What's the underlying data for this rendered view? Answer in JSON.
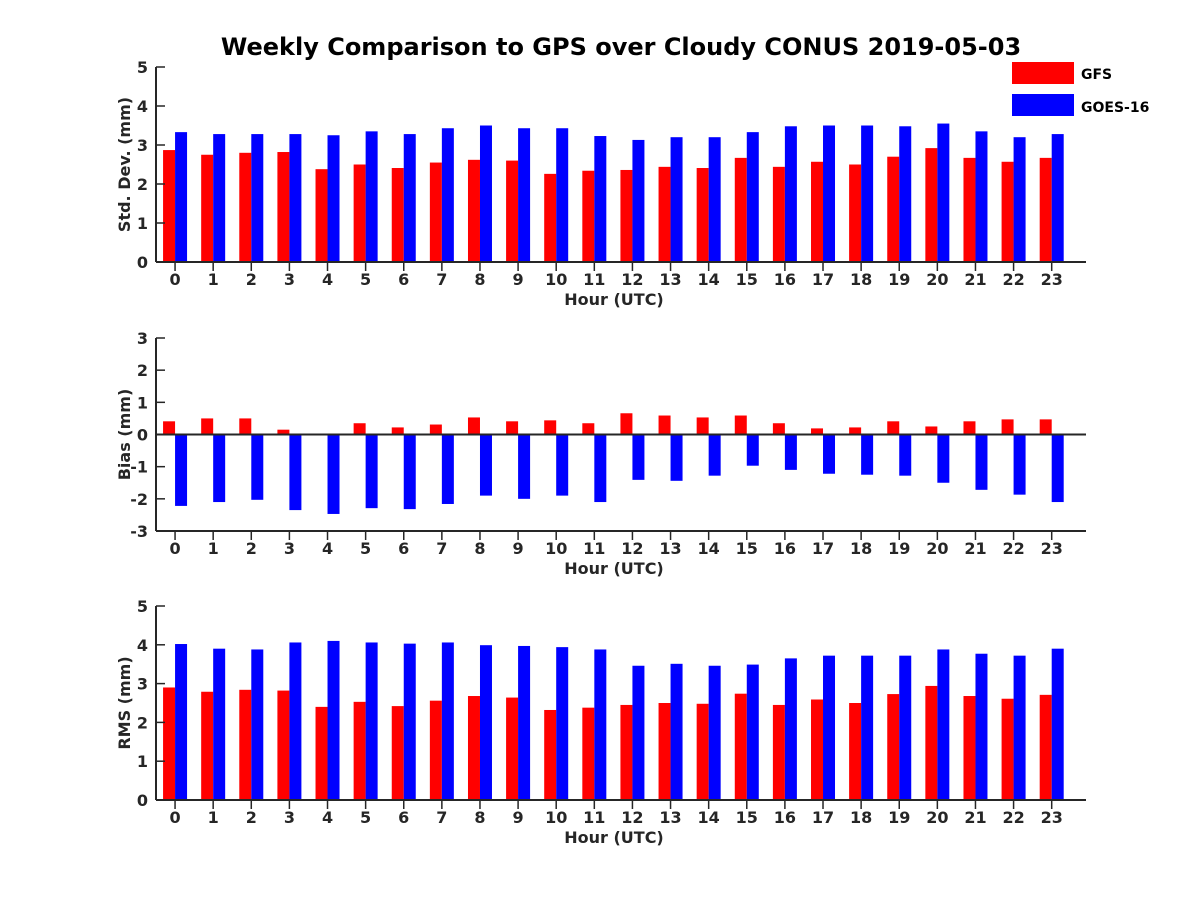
{
  "title": "Weekly Comparison to GPS over Cloudy CONUS 2019-05-03",
  "legend": {
    "placement": "top-right",
    "entries": [
      {
        "label": "GFS",
        "color": "#ff0000"
      },
      {
        "label": "GOES-16",
        "color": "#0000ff"
      }
    ]
  },
  "chart_data": [
    {
      "type": "bar",
      "ylabel": "Std. Dev. (mm)",
      "xlabel": "Hour (UTC)",
      "ylim": [
        0,
        5
      ],
      "yticks": [
        0,
        1,
        2,
        3,
        4,
        5
      ],
      "categories": [
        "0",
        "1",
        "2",
        "3",
        "4",
        "5",
        "6",
        "7",
        "8",
        "9",
        "10",
        "11",
        "12",
        "13",
        "14",
        "15",
        "16",
        "17",
        "18",
        "19",
        "20",
        "21",
        "22",
        "23"
      ],
      "series": [
        {
          "name": "GFS",
          "color": "#ff0000",
          "values": [
            2.87,
            2.75,
            2.8,
            2.82,
            2.38,
            2.5,
            2.41,
            2.55,
            2.62,
            2.6,
            2.26,
            2.34,
            2.36,
            2.44,
            2.41,
            2.67,
            2.44,
            2.57,
            2.5,
            2.7,
            2.92,
            2.67,
            2.57,
            2.67
          ]
        },
        {
          "name": "GOES-16",
          "color": "#0000ff",
          "values": [
            3.33,
            3.28,
            3.28,
            3.28,
            3.25,
            3.35,
            3.28,
            3.43,
            3.5,
            3.43,
            3.43,
            3.23,
            3.13,
            3.2,
            3.2,
            3.33,
            3.48,
            3.5,
            3.5,
            3.48,
            3.55,
            3.35,
            3.2,
            3.28
          ]
        }
      ]
    },
    {
      "type": "bar",
      "ylabel": "Bias (mm)",
      "xlabel": "Hour (UTC)",
      "ylim": [
        -3,
        3
      ],
      "yticks": [
        -3,
        -2,
        -1,
        0,
        1,
        2,
        3
      ],
      "categories": [
        "0",
        "1",
        "2",
        "3",
        "4",
        "5",
        "6",
        "7",
        "8",
        "9",
        "10",
        "11",
        "12",
        "13",
        "14",
        "15",
        "16",
        "17",
        "18",
        "19",
        "20",
        "21",
        "22",
        "23"
      ],
      "series": [
        {
          "name": "GFS",
          "color": "#ff0000",
          "values": [
            0.41,
            0.5,
            0.5,
            0.15,
            0.03,
            0.35,
            0.22,
            0.31,
            0.53,
            0.41,
            0.44,
            0.35,
            0.66,
            0.59,
            0.53,
            0.59,
            0.35,
            0.19,
            0.22,
            0.41,
            0.25,
            0.41,
            0.47,
            0.47
          ]
        },
        {
          "name": "GOES-16",
          "color": "#0000ff",
          "values": [
            -2.22,
            -2.1,
            -2.03,
            -2.35,
            -2.47,
            -2.29,
            -2.32,
            -2.16,
            -1.9,
            -2.0,
            -1.9,
            -2.1,
            -1.41,
            -1.44,
            -1.28,
            -0.97,
            -1.1,
            -1.22,
            -1.25,
            -1.28,
            -1.5,
            -1.72,
            -1.87,
            -2.1
          ]
        }
      ]
    },
    {
      "type": "bar",
      "ylabel": "RMS (mm)",
      "xlabel": "Hour (UTC)",
      "ylim": [
        0,
        5
      ],
      "yticks": [
        0,
        1,
        2,
        3,
        4,
        5
      ],
      "categories": [
        "0",
        "1",
        "2",
        "3",
        "4",
        "5",
        "6",
        "7",
        "8",
        "9",
        "10",
        "11",
        "12",
        "13",
        "14",
        "15",
        "16",
        "17",
        "18",
        "19",
        "20",
        "21",
        "22",
        "23"
      ],
      "series": [
        {
          "name": "GFS",
          "color": "#ff0000",
          "values": [
            2.9,
            2.79,
            2.84,
            2.82,
            2.4,
            2.53,
            2.42,
            2.56,
            2.68,
            2.64,
            2.32,
            2.38,
            2.45,
            2.5,
            2.48,
            2.74,
            2.45,
            2.59,
            2.5,
            2.73,
            2.94,
            2.68,
            2.61,
            2.71
          ]
        },
        {
          "name": "GOES-16",
          "color": "#0000ff",
          "values": [
            4.02,
            3.9,
            3.88,
            4.06,
            4.1,
            4.06,
            4.03,
            4.06,
            3.99,
            3.97,
            3.94,
            3.88,
            3.46,
            3.51,
            3.46,
            3.49,
            3.65,
            3.72,
            3.72,
            3.72,
            3.88,
            3.77,
            3.72,
            3.9
          ]
        }
      ]
    }
  ]
}
